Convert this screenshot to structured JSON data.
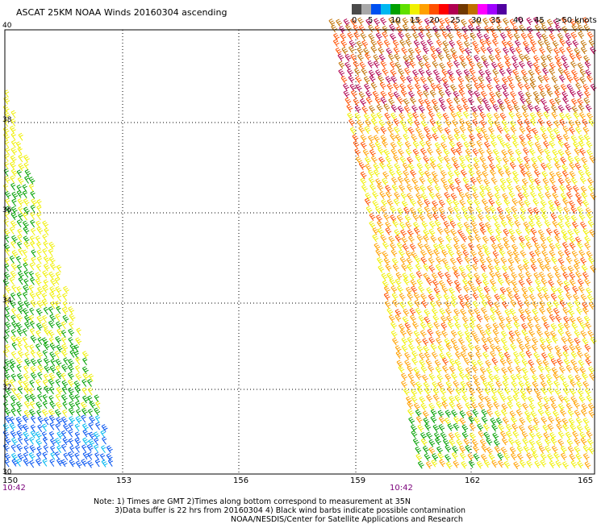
{
  "title": "ASCAT 25KM NOAA Winds 20160304 ascending",
  "legend": {
    "ticks": [
      "0",
      "5",
      "10",
      "15",
      "20",
      "25",
      "30",
      "35",
      "40",
      "45",
      ">50 knots"
    ],
    "colors": [
      "#4a4a4a",
      "#a8a8a8",
      "#0050f0",
      "#00b8f0",
      "#00a000",
      "#60e000",
      "#f0f000",
      "#ffa000",
      "#ff5000",
      "#ff0000",
      "#b00050",
      "#703800",
      "#c07000",
      "#ff00ff",
      "#a000ff",
      "#5000a0"
    ]
  },
  "map": {
    "lat_labels": [
      "40",
      "38",
      "36",
      "34",
      "32",
      "30"
    ],
    "lon_labels": [
      "150",
      "153",
      "156",
      "159",
      "162",
      "165"
    ],
    "time_labels": [
      "10:42",
      "10:42"
    ],
    "swaths": [
      {
        "name": "west-swath",
        "dominant_speed_knots": "10-25"
      },
      {
        "name": "east-swath",
        "dominant_speed_knots": "20-40"
      }
    ]
  },
  "notes": {
    "line1": "Note: 1) Times are GMT 2)Times along bottom correspond to measurement at 35N",
    "line2": "3)Data buffer is 22 hrs from 20160304 4) Black wind barbs indicate possible contamination",
    "line3": "NOAA/NESDIS/Center for Satellite Applications and Research"
  }
}
